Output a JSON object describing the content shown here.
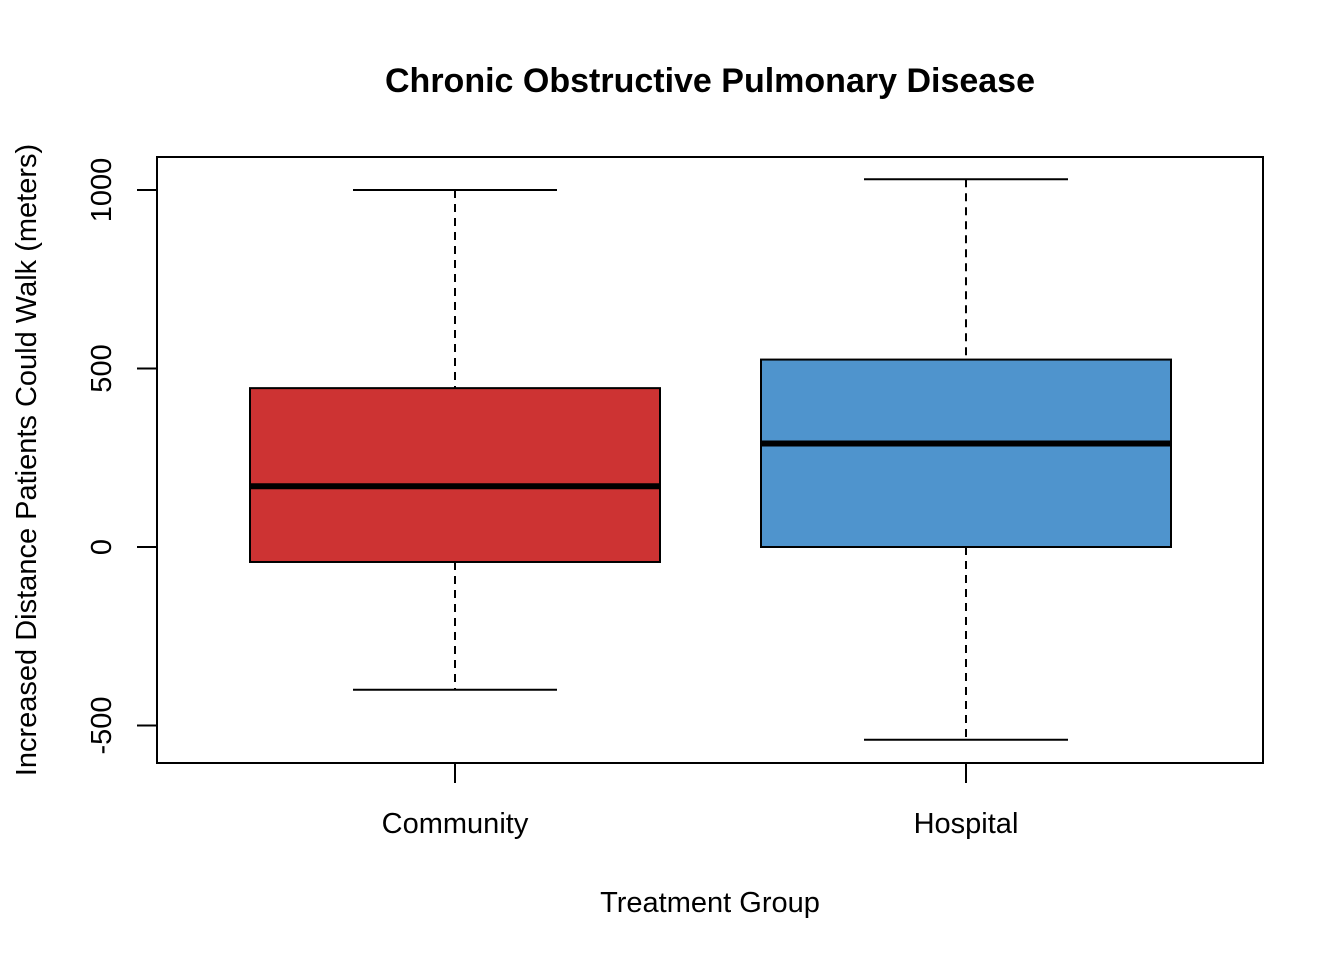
{
  "chart_data": {
    "type": "box",
    "title": "Chronic Obstructive Pulmonary Disease",
    "xlabel": "Treatment Group",
    "ylabel": "Increased Distance Patients Could Walk (meters)",
    "ylim": [
      -600,
      1100
    ],
    "yticks": [
      -500,
      0,
      500,
      1000
    ],
    "grid": false,
    "categories": [
      "Community",
      "Hospital"
    ],
    "boxes": [
      {
        "category": "Community",
        "whisker_low": -400,
        "q1": -42,
        "median": 170,
        "q3": 445,
        "whisker_high": 1000,
        "color": "#CD3333"
      },
      {
        "category": "Hospital",
        "whisker_low": -540,
        "q1": 0,
        "median": 290,
        "q3": 525,
        "whisker_high": 1030,
        "color": "#4F94CD"
      }
    ]
  }
}
